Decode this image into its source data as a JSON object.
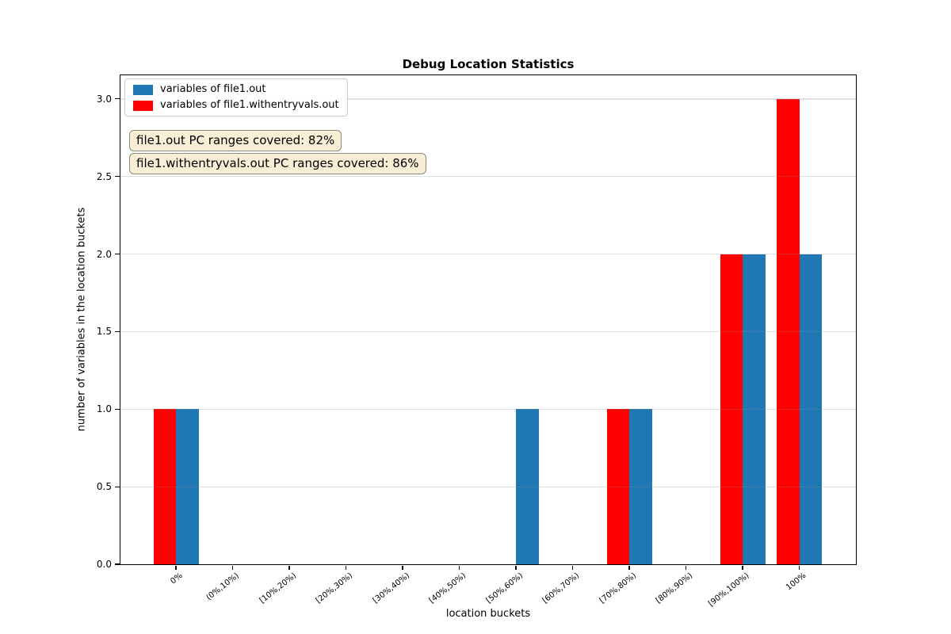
{
  "chart_data": {
    "type": "bar",
    "title": "Debug Location Statistics",
    "xlabel": "location buckets",
    "ylabel": "number of variables in the location buckets",
    "categories": [
      "0%",
      "(0%,10%)",
      "[10%,20%)",
      "[20%,30%)",
      "[30%,40%)",
      "[40%,50%)",
      "[50%,60%)",
      "[60%,70%)",
      "[70%,80%)",
      "[80%,90%)",
      "[90%,100%)",
      "100%"
    ],
    "series": [
      {
        "name": "variables of file1.out",
        "color": "#1f77b4",
        "values": [
          1,
          0,
          0,
          0,
          0,
          0,
          1,
          0,
          1,
          0,
          2,
          2
        ]
      },
      {
        "name": "variables of file1.withentryvals.out",
        "color": "#ff0000",
        "values": [
          1,
          0,
          0,
          0,
          0,
          0,
          0,
          0,
          1,
          0,
          2,
          3
        ]
      }
    ],
    "ylim": [
      0,
      3.15
    ],
    "yticks": [
      0,
      0.5,
      1,
      1.5,
      2,
      2.5,
      3
    ],
    "ytick_labels": [
      "0.0",
      "0.5",
      "1.0",
      "1.5",
      "2.0",
      "2.5",
      "3.0"
    ],
    "grid": true,
    "legend_position": "upper left",
    "annotations": [
      "file1.out PC ranges covered: 82%",
      "file1.withentryvals.out PC ranges covered: 86%"
    ],
    "colors": {
      "annotation_bg": "#f8eed6",
      "annotation_border": "#8a8a78",
      "grid": "#e5e5e5"
    }
  }
}
